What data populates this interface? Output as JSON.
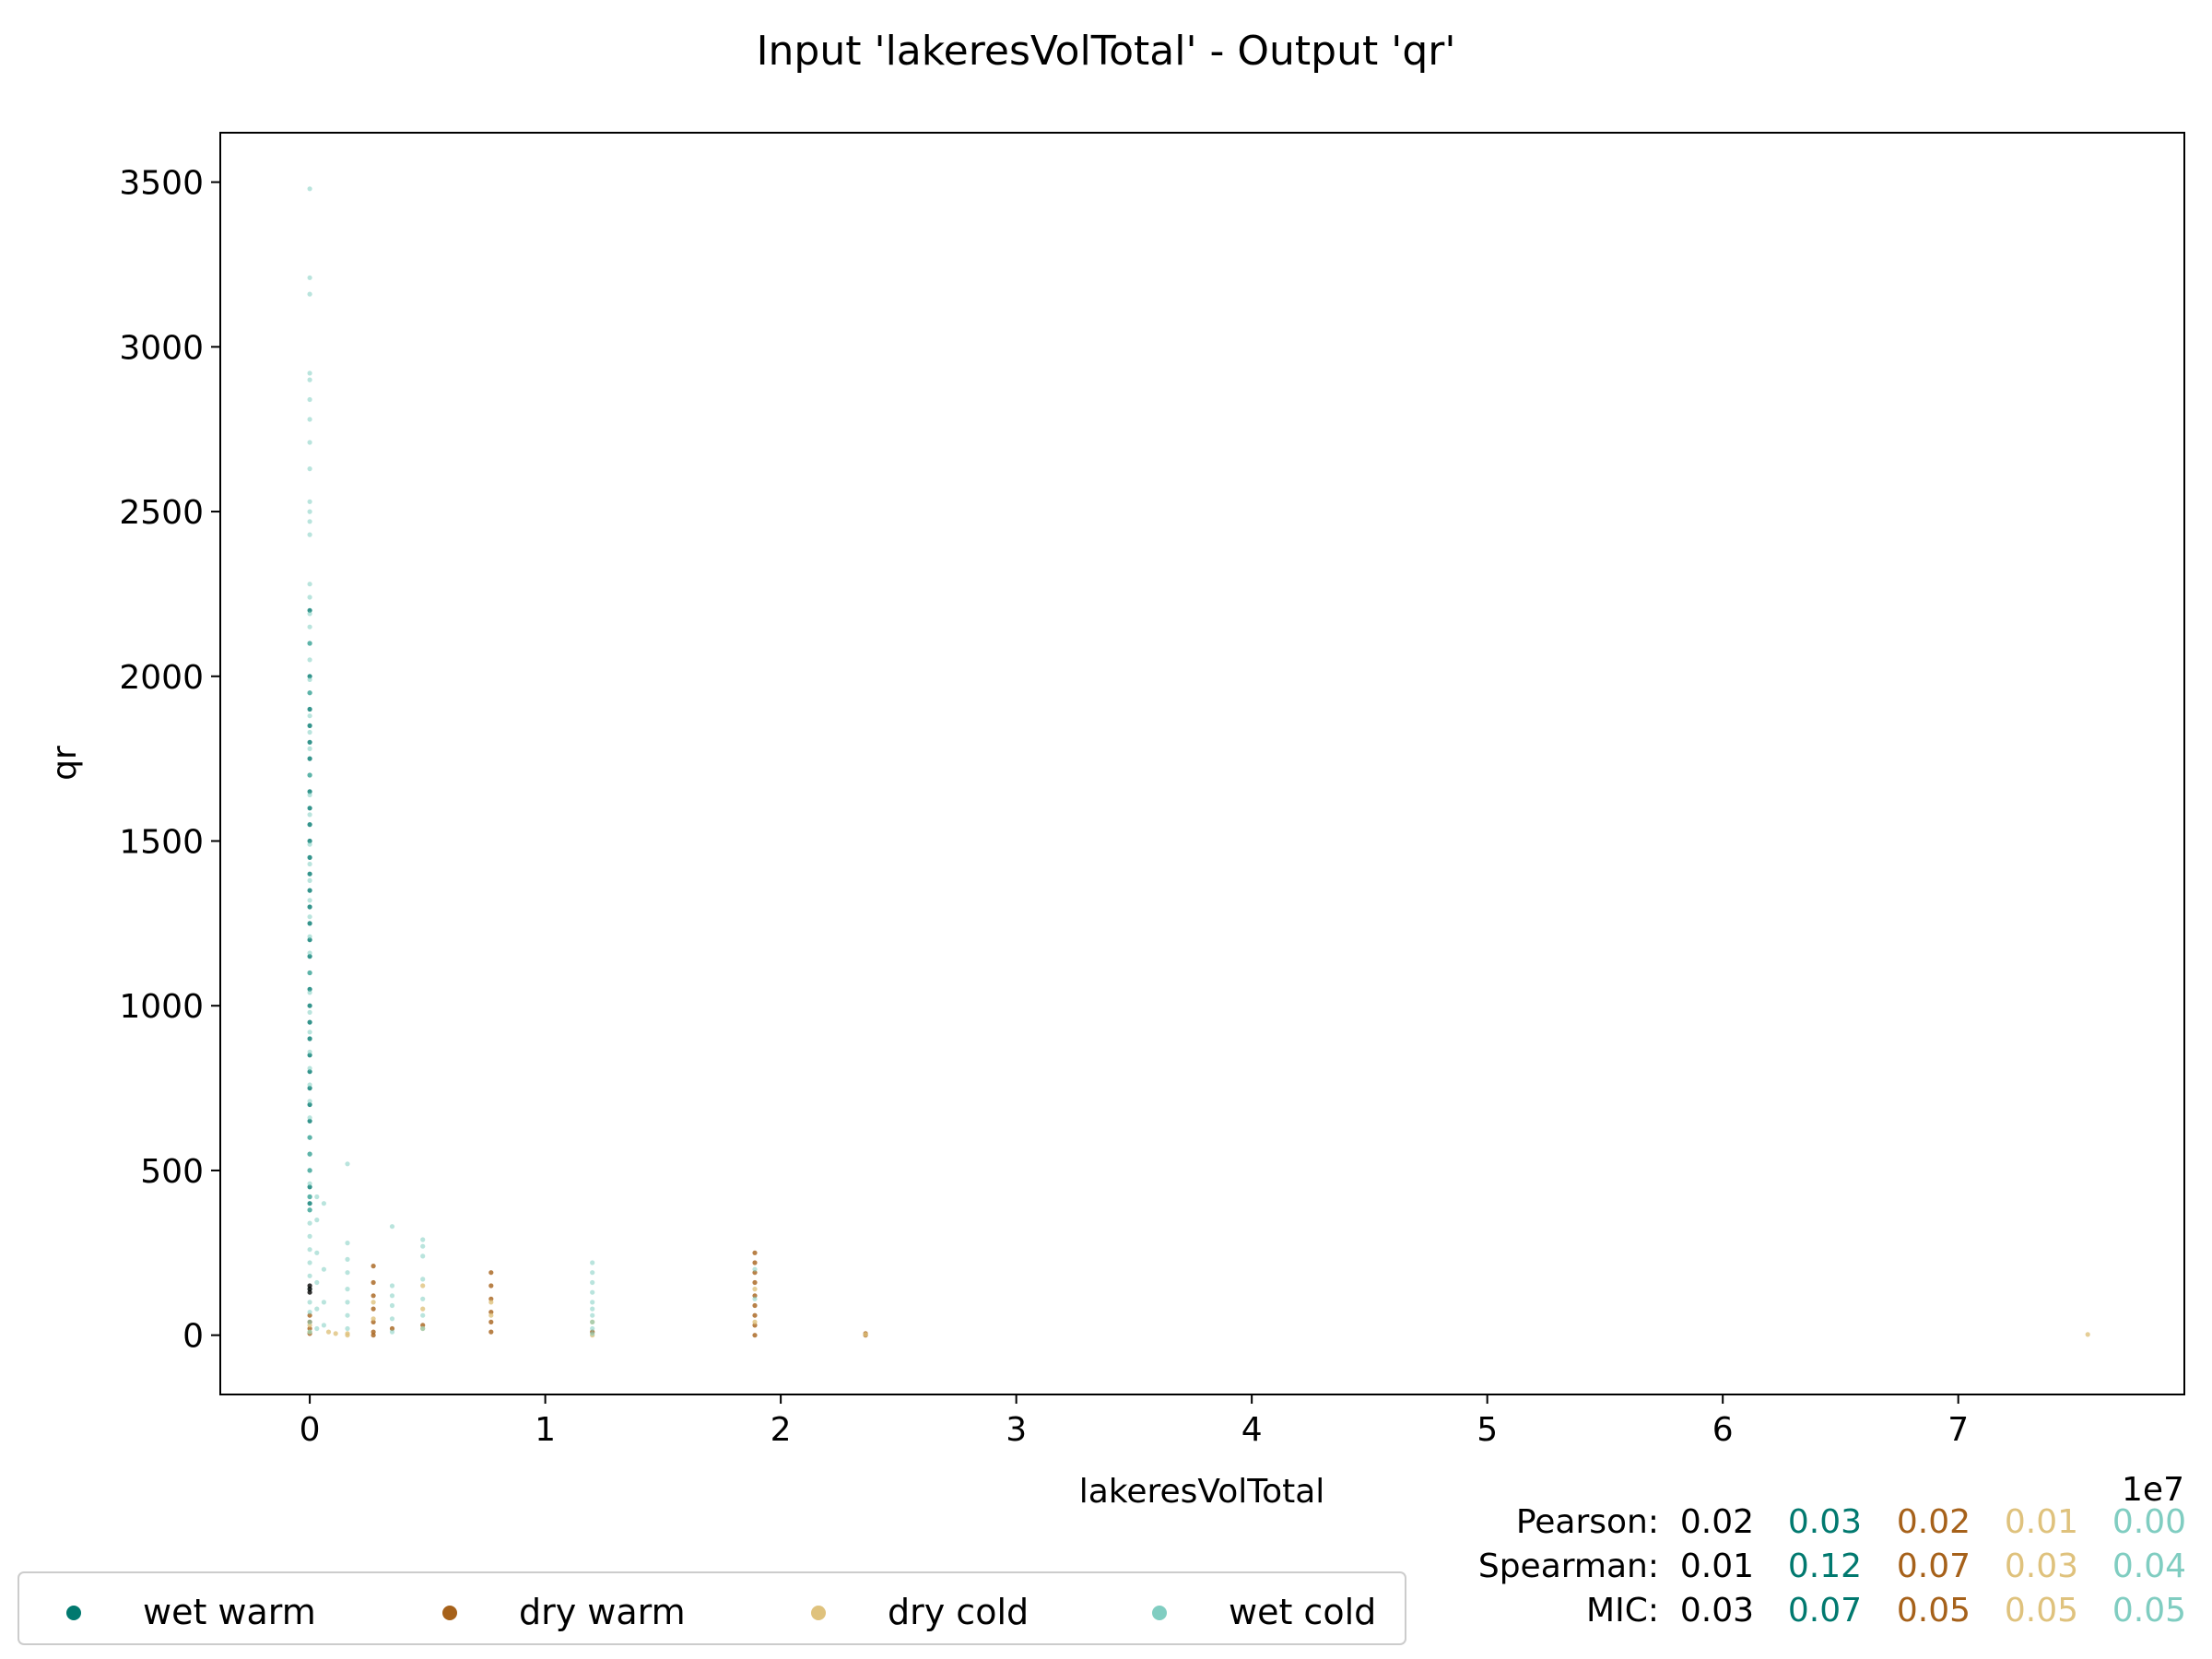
{
  "chart_data": {
    "type": "scatter",
    "title": "Input 'lakeresVolTotal' - Output 'qr'",
    "xlabel": "lakeresVolTotal",
    "ylabel": "qr",
    "x_offset_label": "1e7",
    "x_scale": 10000000,
    "xlim": [
      -3800000,
      79600000
    ],
    "ylim": [
      -180,
      3650
    ],
    "x_ticks": [
      0,
      10000000,
      20000000,
      30000000,
      40000000,
      50000000,
      60000000,
      70000000
    ],
    "x_tick_labels": [
      "0",
      "1",
      "2",
      "3",
      "4",
      "5",
      "6",
      "7"
    ],
    "y_ticks": [
      0,
      500,
      1000,
      1500,
      2000,
      2500,
      3000,
      3500
    ],
    "y_tick_labels": [
      "0",
      "500",
      "1000",
      "1500",
      "2000",
      "2500",
      "3000",
      "3500"
    ],
    "grid": false,
    "legend_position": "bottom-left",
    "series": [
      {
        "name": "wet warm",
        "color": "#01796f",
        "points": [
          [
            0,
            1600
          ],
          [
            0,
            1500
          ],
          [
            0,
            1450
          ],
          [
            0,
            1400
          ],
          [
            0,
            1350
          ],
          [
            0,
            1300
          ],
          [
            0,
            1250
          ],
          [
            0,
            1200
          ],
          [
            0,
            1150
          ],
          [
            0,
            1100
          ],
          [
            0,
            1050
          ],
          [
            0,
            1000
          ],
          [
            0,
            950
          ],
          [
            0,
            900
          ],
          [
            0,
            850
          ],
          [
            0,
            800
          ],
          [
            0,
            750
          ],
          [
            0,
            700
          ],
          [
            0,
            650
          ],
          [
            0,
            600
          ],
          [
            0,
            550
          ],
          [
            0,
            500
          ],
          [
            0,
            450
          ],
          [
            0,
            420
          ],
          [
            0,
            400
          ],
          [
            0,
            380
          ],
          [
            0,
            1700
          ],
          [
            0,
            1800
          ],
          [
            0,
            1900
          ],
          [
            0,
            2000
          ],
          [
            0,
            2100
          ],
          [
            0,
            1650
          ],
          [
            0,
            1550
          ],
          [
            0,
            1750
          ],
          [
            0,
            1850
          ],
          [
            0,
            1950
          ],
          [
            0,
            2200
          ]
        ]
      },
      {
        "name": "dry warm",
        "color": "#a6611a",
        "points": [
          [
            0,
            60
          ],
          [
            0,
            40
          ],
          [
            0,
            20
          ],
          [
            0,
            5
          ],
          [
            2700000,
            210
          ],
          [
            2700000,
            160
          ],
          [
            2700000,
            120
          ],
          [
            2700000,
            80
          ],
          [
            2700000,
            40
          ],
          [
            2700000,
            10
          ],
          [
            2700000,
            0
          ],
          [
            7700000,
            190
          ],
          [
            7700000,
            150
          ],
          [
            7700000,
            110
          ],
          [
            7700000,
            70
          ],
          [
            7700000,
            40
          ],
          [
            7700000,
            10
          ],
          [
            18900000,
            250
          ],
          [
            18900000,
            220
          ],
          [
            18900000,
            190
          ],
          [
            18900000,
            160
          ],
          [
            18900000,
            120
          ],
          [
            18900000,
            90
          ],
          [
            18900000,
            60
          ],
          [
            18900000,
            30
          ],
          [
            18900000,
            0
          ],
          [
            23600000,
            0
          ],
          [
            23600000,
            5
          ],
          [
            3500000,
            20
          ],
          [
            4800000,
            30
          ],
          [
            12000000,
            10
          ]
        ]
      },
      {
        "name": "dry cold",
        "color": "#dfc27d",
        "points": [
          [
            0,
            10
          ],
          [
            0,
            30
          ],
          [
            1600000,
            5
          ],
          [
            1600000,
            0
          ],
          [
            2700000,
            100
          ],
          [
            2700000,
            50
          ],
          [
            4800000,
            150
          ],
          [
            4800000,
            80
          ],
          [
            4800000,
            20
          ],
          [
            7700000,
            100
          ],
          [
            7700000,
            60
          ],
          [
            12000000,
            40
          ],
          [
            12000000,
            0
          ],
          [
            18900000,
            140
          ],
          [
            18900000,
            40
          ],
          [
            23600000,
            2
          ],
          [
            75500000,
            2
          ],
          [
            800000,
            10
          ],
          [
            1100000,
            5
          ]
        ]
      },
      {
        "name": "wet cold",
        "color": "#80cdc1",
        "points": [
          [
            0,
            3480
          ],
          [
            0,
            3210
          ],
          [
            0,
            3160
          ],
          [
            0,
            2920
          ],
          [
            0,
            2900
          ],
          [
            0,
            2840
          ],
          [
            0,
            2780
          ],
          [
            0,
            2710
          ],
          [
            0,
            2630
          ],
          [
            0,
            2530
          ],
          [
            0,
            2500
          ],
          [
            0,
            2470
          ],
          [
            0,
            2430
          ],
          [
            0,
            2280
          ],
          [
            0,
            2240
          ],
          [
            0,
            2190
          ],
          [
            0,
            2150
          ],
          [
            0,
            2100
          ],
          [
            0,
            2050
          ],
          [
            0,
            1990
          ],
          [
            0,
            1950
          ],
          [
            0,
            1880
          ],
          [
            0,
            1830
          ],
          [
            0,
            1780
          ],
          [
            0,
            1700
          ],
          [
            0,
            1640
          ],
          [
            0,
            1580
          ],
          [
            0,
            1490
          ],
          [
            0,
            1430
          ],
          [
            0,
            1380
          ],
          [
            0,
            1320
          ],
          [
            0,
            1270
          ],
          [
            0,
            1210
          ],
          [
            0,
            1160
          ],
          [
            0,
            1100
          ],
          [
            0,
            1040
          ],
          [
            0,
            980
          ],
          [
            0,
            920
          ],
          [
            0,
            860
          ],
          [
            0,
            810
          ],
          [
            0,
            760
          ],
          [
            0,
            710
          ],
          [
            0,
            660
          ],
          [
            0,
            600
          ],
          [
            0,
            550
          ],
          [
            0,
            500
          ],
          [
            0,
            460
          ],
          [
            0,
            420
          ],
          [
            0,
            380
          ],
          [
            0,
            340
          ],
          [
            0,
            300
          ],
          [
            0,
            260
          ],
          [
            0,
            220
          ],
          [
            0,
            180
          ],
          [
            0,
            140
          ],
          [
            0,
            100
          ],
          [
            0,
            70
          ],
          [
            0,
            40
          ],
          [
            0,
            10
          ],
          [
            300000,
            420
          ],
          [
            300000,
            350
          ],
          [
            300000,
            250
          ],
          [
            300000,
            160
          ],
          [
            300000,
            80
          ],
          [
            300000,
            20
          ],
          [
            600000,
            400
          ],
          [
            600000,
            200
          ],
          [
            600000,
            100
          ],
          [
            600000,
            30
          ],
          [
            1600000,
            520
          ],
          [
            1600000,
            280
          ],
          [
            1600000,
            230
          ],
          [
            1600000,
            190
          ],
          [
            1600000,
            140
          ],
          [
            1600000,
            100
          ],
          [
            1600000,
            60
          ],
          [
            1600000,
            20
          ],
          [
            3500000,
            330
          ],
          [
            3500000,
            150
          ],
          [
            3500000,
            120
          ],
          [
            3500000,
            90
          ],
          [
            3500000,
            50
          ],
          [
            3500000,
            10
          ],
          [
            4800000,
            290
          ],
          [
            4800000,
            270
          ],
          [
            4800000,
            240
          ],
          [
            4800000,
            170
          ],
          [
            4800000,
            110
          ],
          [
            4800000,
            60
          ],
          [
            4800000,
            20
          ],
          [
            12000000,
            220
          ],
          [
            12000000,
            190
          ],
          [
            12000000,
            160
          ],
          [
            12000000,
            130
          ],
          [
            12000000,
            100
          ],
          [
            12000000,
            80
          ],
          [
            12000000,
            60
          ],
          [
            12000000,
            40
          ],
          [
            12000000,
            20
          ],
          [
            12000000,
            5
          ],
          [
            18900000,
            200
          ],
          [
            18900000,
            110
          ]
        ]
      },
      {
        "name": "",
        "color": "#000000",
        "points": [
          [
            0,
            150
          ],
          [
            0,
            140
          ],
          [
            0,
            130
          ]
        ]
      }
    ],
    "stats": [
      {
        "label": "Pearson:",
        "values": [
          "0.02",
          "0.03",
          "0.02",
          "0.01",
          "0.00"
        ]
      },
      {
        "label": "Spearman:",
        "values": [
          "0.01",
          "0.12",
          "0.07",
          "0.03",
          "0.04"
        ]
      },
      {
        "label": "MIC:",
        "values": [
          "0.03",
          "0.07",
          "0.05",
          "0.05",
          "0.05"
        ]
      }
    ],
    "stat_colors": [
      "#000000",
      "#01796f",
      "#a6611a",
      "#dfc27d",
      "#80cdc1"
    ],
    "legend": [
      {
        "label": "wet warm",
        "color": "#01796f"
      },
      {
        "label": "dry warm",
        "color": "#a6611a"
      },
      {
        "label": "dry cold",
        "color": "#dfc27d"
      },
      {
        "label": "wet cold",
        "color": "#80cdc1"
      }
    ]
  }
}
